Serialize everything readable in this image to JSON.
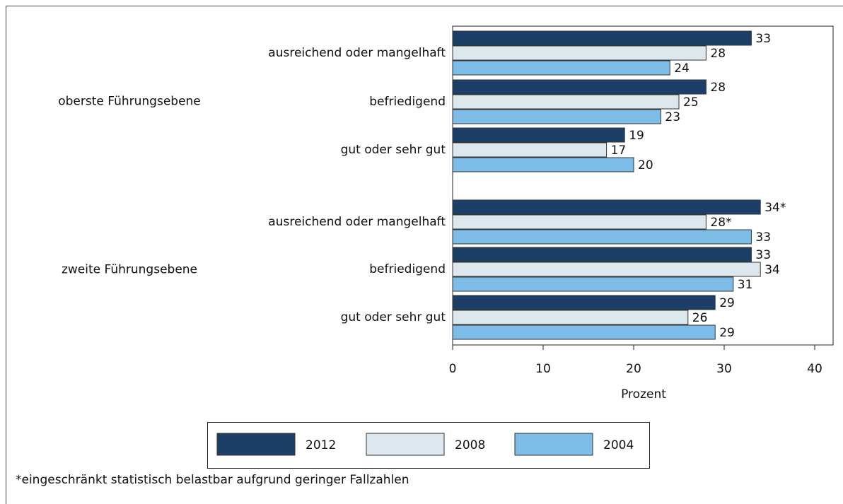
{
  "chart_data": {
    "type": "bar",
    "orientation": "horizontal",
    "groups": [
      "oberste Führungsebene",
      "zweite Führungsebene"
    ],
    "categories": [
      "ausreichend oder mangelhaft",
      "befriedigend",
      "gut oder sehr gut",
      "ausreichend oder mangelhaft",
      "befriedigend",
      "gut oder sehr gut"
    ],
    "series": [
      {
        "name": "2012",
        "color": "#1b3f66",
        "values": [
          33,
          28,
          19,
          34,
          33,
          29
        ],
        "value_labels": [
          "33",
          "28",
          "19",
          "34*",
          "33",
          "29"
        ]
      },
      {
        "name": "2008",
        "color": "#dce8ee",
        "values": [
          28,
          25,
          17,
          28,
          34,
          26
        ],
        "value_labels": [
          "28",
          "25",
          "17",
          "28*",
          "34",
          "26"
        ]
      },
      {
        "name": "2004",
        "color": "#7dbde8",
        "values": [
          24,
          23,
          20,
          33,
          31,
          29
        ]
      }
    ],
    "x_label": "Prozent",
    "xlim": [
      0,
      42
    ],
    "xticks": [
      0,
      10,
      20,
      30,
      40
    ],
    "legend": "bottom",
    "footnote": "*eingeschränkt statistisch belastbar aufgrund geringer Fallzahlen"
  }
}
